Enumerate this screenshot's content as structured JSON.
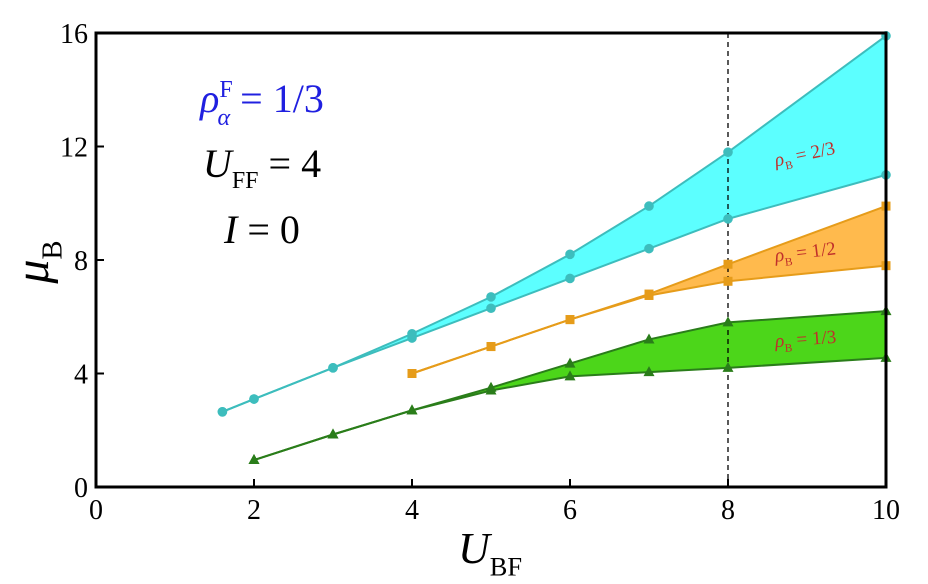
{
  "chart_data": {
    "type": "line",
    "xlim": [
      0,
      10
    ],
    "ylim": [
      0,
      16
    ],
    "xticks": [
      0,
      2,
      4,
      6,
      8,
      10
    ],
    "yticks": [
      0,
      4,
      8,
      12,
      16
    ],
    "xlabel": {
      "base": "U",
      "sub": "BF"
    },
    "ylabel": {
      "base": "μ",
      "sub": "B"
    },
    "vline": 8,
    "annotations": [
      {
        "base": "ρ",
        "sup": "F",
        "sub": "α",
        "text": " = 1/3",
        "color": "#2020e0"
      },
      {
        "base": "U",
        "sub": "FF",
        "text": " = 4",
        "color": "#000000"
      },
      {
        "base": "I",
        "text": " = 0",
        "color": "#000000"
      }
    ],
    "bands": [
      {
        "x": [
          1.6,
          2,
          3,
          4,
          5,
          6,
          7,
          8,
          10
        ],
        "upper": [
          2.65,
          3.1,
          4.2,
          5.4,
          6.7,
          8.2,
          9.9,
          11.8,
          15.9
        ],
        "lower": [
          2.65,
          3.1,
          4.2,
          5.25,
          6.3,
          7.35,
          8.4,
          9.45,
          11.0
        ],
        "color": "#3dbdbd",
        "fill": "#5cffff",
        "marker": "circle",
        "label": {
          "base": "ρ",
          "sub": "B",
          "text": " = 2/3"
        }
      },
      {
        "x": [
          4,
          5,
          6,
          7,
          8,
          10
        ],
        "upper": [
          4.0,
          4.95,
          5.9,
          6.8,
          7.85,
          9.9
        ],
        "lower": [
          4.0,
          4.95,
          5.9,
          6.75,
          7.25,
          7.8
        ],
        "color": "#e69c1a",
        "fill": "#ffba4d",
        "marker": "square",
        "label": {
          "base": "ρ",
          "sub": "B",
          "text": " = 1/2"
        }
      },
      {
        "x": [
          2,
          3,
          4,
          5,
          6,
          7,
          8,
          10
        ],
        "upper": [
          0.95,
          1.85,
          2.7,
          3.5,
          4.35,
          5.2,
          5.8,
          6.2
        ],
        "lower": [
          0.95,
          1.85,
          2.7,
          3.4,
          3.9,
          4.05,
          4.2,
          4.55
        ],
        "color": "#2a7d1a",
        "fill": "#4cd61a",
        "marker": "triangle",
        "label": {
          "base": "ρ",
          "sub": "B",
          "text": " = 1/3"
        }
      }
    ],
    "label_color": "#c0302b"
  }
}
